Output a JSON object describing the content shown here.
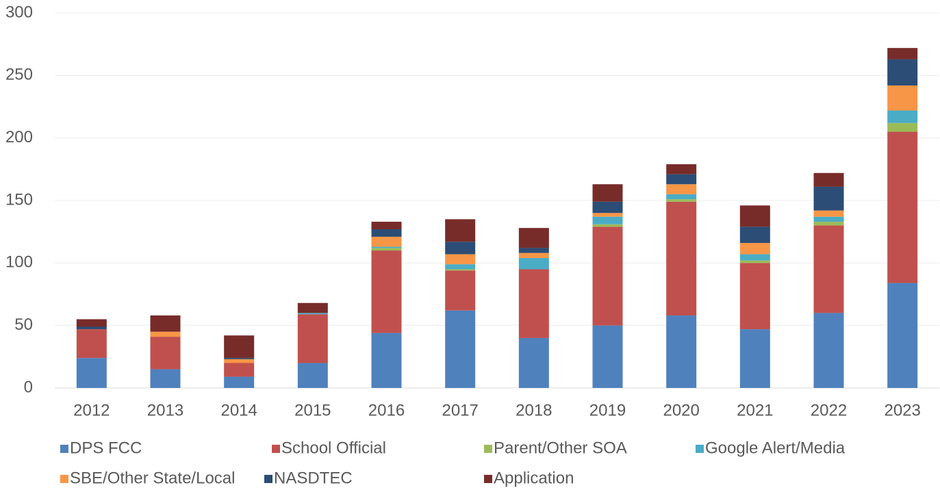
{
  "chart_data": {
    "type": "stacked_bar",
    "categories": [
      "2012",
      "2013",
      "2014",
      "2015",
      "2016",
      "2017",
      "2018",
      "2019",
      "2020",
      "2021",
      "2022",
      "2023"
    ],
    "series": [
      {
        "name": "DPS FCC",
        "color": "#4f81bd",
        "values": [
          24,
          15,
          9,
          20,
          44,
          62,
          40,
          50,
          58,
          47,
          60,
          84
        ]
      },
      {
        "name": "School Official",
        "color": "#c0504d",
        "values": [
          23,
          26,
          11,
          39,
          66,
          32,
          55,
          79,
          91,
          53,
          70,
          121
        ]
      },
      {
        "name": "Parent/Other SOA",
        "color": "#9bbb59",
        "values": [
          0,
          0,
          0,
          0,
          2,
          1,
          0,
          2,
          2,
          2,
          3,
          7
        ]
      },
      {
        "name": "Google Alert/Media",
        "color": "#4bacc6",
        "values": [
          0,
          0,
          0,
          1,
          1,
          4,
          9,
          6,
          4,
          5,
          4,
          10
        ]
      },
      {
        "name": "SBE/Other State/Local",
        "color": "#f79646",
        "values": [
          0,
          4,
          3,
          0,
          8,
          8,
          4,
          3,
          8,
          9,
          5,
          20
        ]
      },
      {
        "name": "NASDTEC",
        "color": "#2c4d75",
        "values": [
          2,
          0,
          1,
          0,
          6,
          10,
          4,
          9,
          8,
          13,
          19,
          21
        ]
      },
      {
        "name": "Application",
        "color": "#772c2a",
        "values": [
          6,
          13,
          18,
          8,
          6,
          18,
          16,
          14,
          8,
          17,
          11,
          9
        ]
      }
    ],
    "ylim": [
      0,
      300
    ],
    "yticks": [
      0,
      50,
      100,
      150,
      200,
      250,
      300
    ],
    "grid": true
  }
}
